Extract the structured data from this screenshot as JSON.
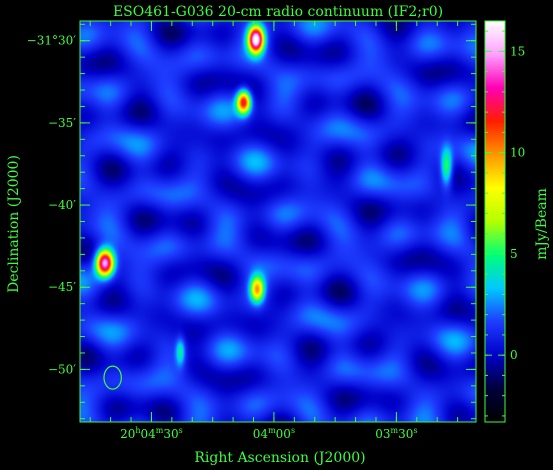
{
  "chart_data": {
    "type": "heatmap",
    "title": "ESO461-G036   20-cm radio continuum (IF2;r0)",
    "xlabel": "Right Ascension (J2000)",
    "ylabel": "Declination (J2000)",
    "x_ticks": [
      {
        "label": "20h04m30s",
        "parts": [
          [
            "20",
            ""
          ],
          [
            "h",
            "sup"
          ],
          [
            "04",
            ""
          ],
          [
            "m",
            "sup"
          ],
          [
            "30",
            ""
          ],
          [
            "s",
            "sup"
          ]
        ],
        "ra_sec": 270
      },
      {
        "label": "04m00s",
        "parts": [
          [
            "04",
            ""
          ],
          [
            "m",
            "sup"
          ],
          [
            "00",
            ""
          ],
          [
            "s",
            "sup"
          ]
        ],
        "ra_sec": 240
      },
      {
        "label": "03m30s",
        "parts": [
          [
            "03",
            ""
          ],
          [
            "m",
            "sup"
          ],
          [
            "30",
            ""
          ],
          [
            "s",
            "sup"
          ]
        ],
        "ra_sec": 210
      }
    ],
    "y_ticks": [
      {
        "label": "−31°30′",
        "dec_arcmin": -30
      },
      {
        "label": "−35′",
        "dec_arcmin": -35
      },
      {
        "label": "−40′",
        "dec_arcmin": -40
      },
      {
        "label": "−45′",
        "dec_arcmin": -45
      },
      {
        "label": "−50′",
        "dec_arcmin": -50
      }
    ],
    "ra_range_sec_after_20h": [
      287.5,
      190.5
    ],
    "dec_range_arcmin_from_m31d": [
      -28.8,
      -53.2
    ],
    "colorbar": {
      "label": "mJy/Beam",
      "min": -3.3,
      "max": 16.5,
      "ticks": [
        0,
        5,
        10,
        15
      ],
      "colormap": [
        "#000000",
        "#00003c",
        "#0000c8",
        "#1e3cff",
        "#00c8ff",
        "#00ff78",
        "#b4ff00",
        "#ffff00",
        "#ff9600",
        "#ff1e00",
        "#ff00b4",
        "#ffa0ff",
        "#ffffff"
      ]
    },
    "sources": [
      {
        "ra_sec": 244.5,
        "dec_arcmin": -29.9,
        "peak": 15.5,
        "sigma_ra_sec": 1.3,
        "sigma_dec_arcmin": 0.55
      },
      {
        "ra_sec": 247.5,
        "dec_arcmin": -33.7,
        "peak": 11.5,
        "sigma_ra_sec": 1.2,
        "sigma_dec_arcmin": 0.5
      },
      {
        "ra_sec": 281.5,
        "dec_arcmin": -43.5,
        "peak": 15.0,
        "sigma_ra_sec": 1.5,
        "sigma_dec_arcmin": 0.55
      },
      {
        "ra_sec": 244.2,
        "dec_arcmin": -45.1,
        "peak": 8.5,
        "sigma_ra_sec": 1.2,
        "sigma_dec_arcmin": 0.55
      },
      {
        "ra_sec": 197.8,
        "dec_arcmin": -37.7,
        "peak": 5.2,
        "sigma_ra_sec": 1.0,
        "sigma_dec_arcmin": 0.8
      },
      {
        "ra_sec": 263.0,
        "dec_arcmin": -48.9,
        "peak": 3.6,
        "sigma_ra_sec": 0.8,
        "sigma_dec_arcmin": 0.6
      }
    ],
    "beam": {
      "ra_sec": 279.5,
      "dec_arcmin": -50.5,
      "major_arcmin": 1.4,
      "minor_sec": 1.7
    },
    "grid": false,
    "legend": "colorbar-right"
  },
  "colors": {
    "axis": "#3cff3c",
    "background": "#000000"
  }
}
